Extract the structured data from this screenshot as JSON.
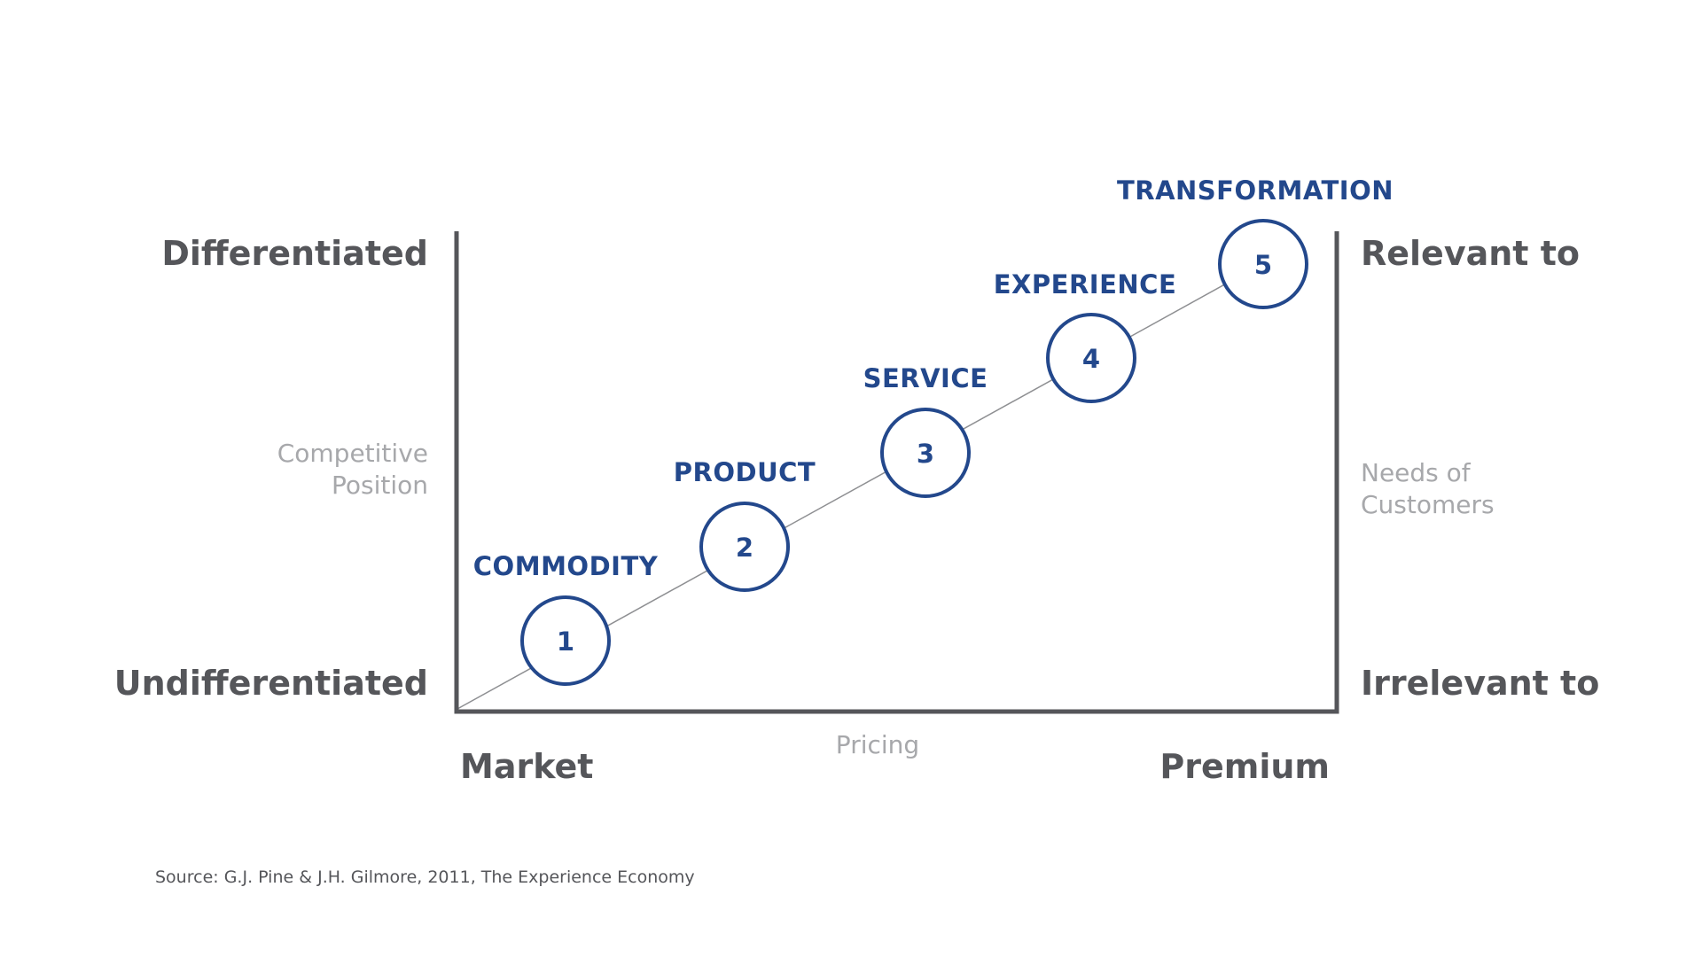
{
  "y_axis": {
    "top_label": "Differentiated",
    "bottom_label": "Undifferentiated",
    "title_line1": "Competitive",
    "title_line2": "Position"
  },
  "right_axis": {
    "top_label": "Relevant to",
    "bottom_label": "Irrelevant to",
    "title_line1": "Needs of",
    "title_line2": "Customers"
  },
  "x_axis": {
    "left_label": "Market",
    "right_label": "Premium",
    "title": "Pricing"
  },
  "stages": [
    {
      "number": "1",
      "label": "COMMODITY"
    },
    {
      "number": "2",
      "label": "PRODUCT"
    },
    {
      "number": "3",
      "label": "SERVICE"
    },
    {
      "number": "4",
      "label": "EXPERIENCE"
    },
    {
      "number": "5",
      "label": "TRANSFORMATION"
    }
  ],
  "source": "Source: G.J. Pine & J.H. Gilmore, 2011, The Experience Economy",
  "colors": {
    "accent": "#23488c",
    "axis": "#55565a",
    "muted": "#a7a8ab"
  }
}
